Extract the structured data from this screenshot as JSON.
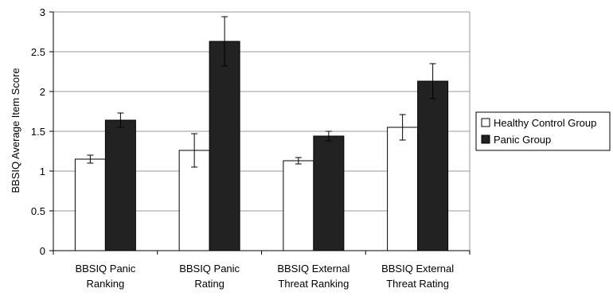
{
  "chart_data": {
    "type": "bar",
    "title": "",
    "xlabel": "",
    "ylabel": "BBSIQ Average Item Score",
    "ylim": [
      0,
      3
    ],
    "yticks": [
      "0",
      "0.5",
      "1",
      "1.5",
      "2",
      "2.5",
      "3"
    ],
    "grid": true,
    "legend_position": "right",
    "categories": [
      [
        "BBSIQ Panic",
        "Ranking"
      ],
      [
        "BBSIQ Panic",
        "Rating"
      ],
      [
        "BBSIQ External",
        "Threat Ranking"
      ],
      [
        "BBSIQ External",
        "Threat Rating"
      ]
    ],
    "series": [
      {
        "name": "Healthy Control Group",
        "color": "#ffffff",
        "values": [
          1.15,
          1.26,
          1.13,
          1.55
        ],
        "errors": [
          0.05,
          0.21,
          0.04,
          0.16
        ]
      },
      {
        "name": "Panic Group",
        "color": "#222222",
        "values": [
          1.64,
          2.63,
          1.44,
          2.13
        ],
        "errors": [
          0.09,
          0.31,
          0.06,
          0.22
        ]
      }
    ]
  }
}
